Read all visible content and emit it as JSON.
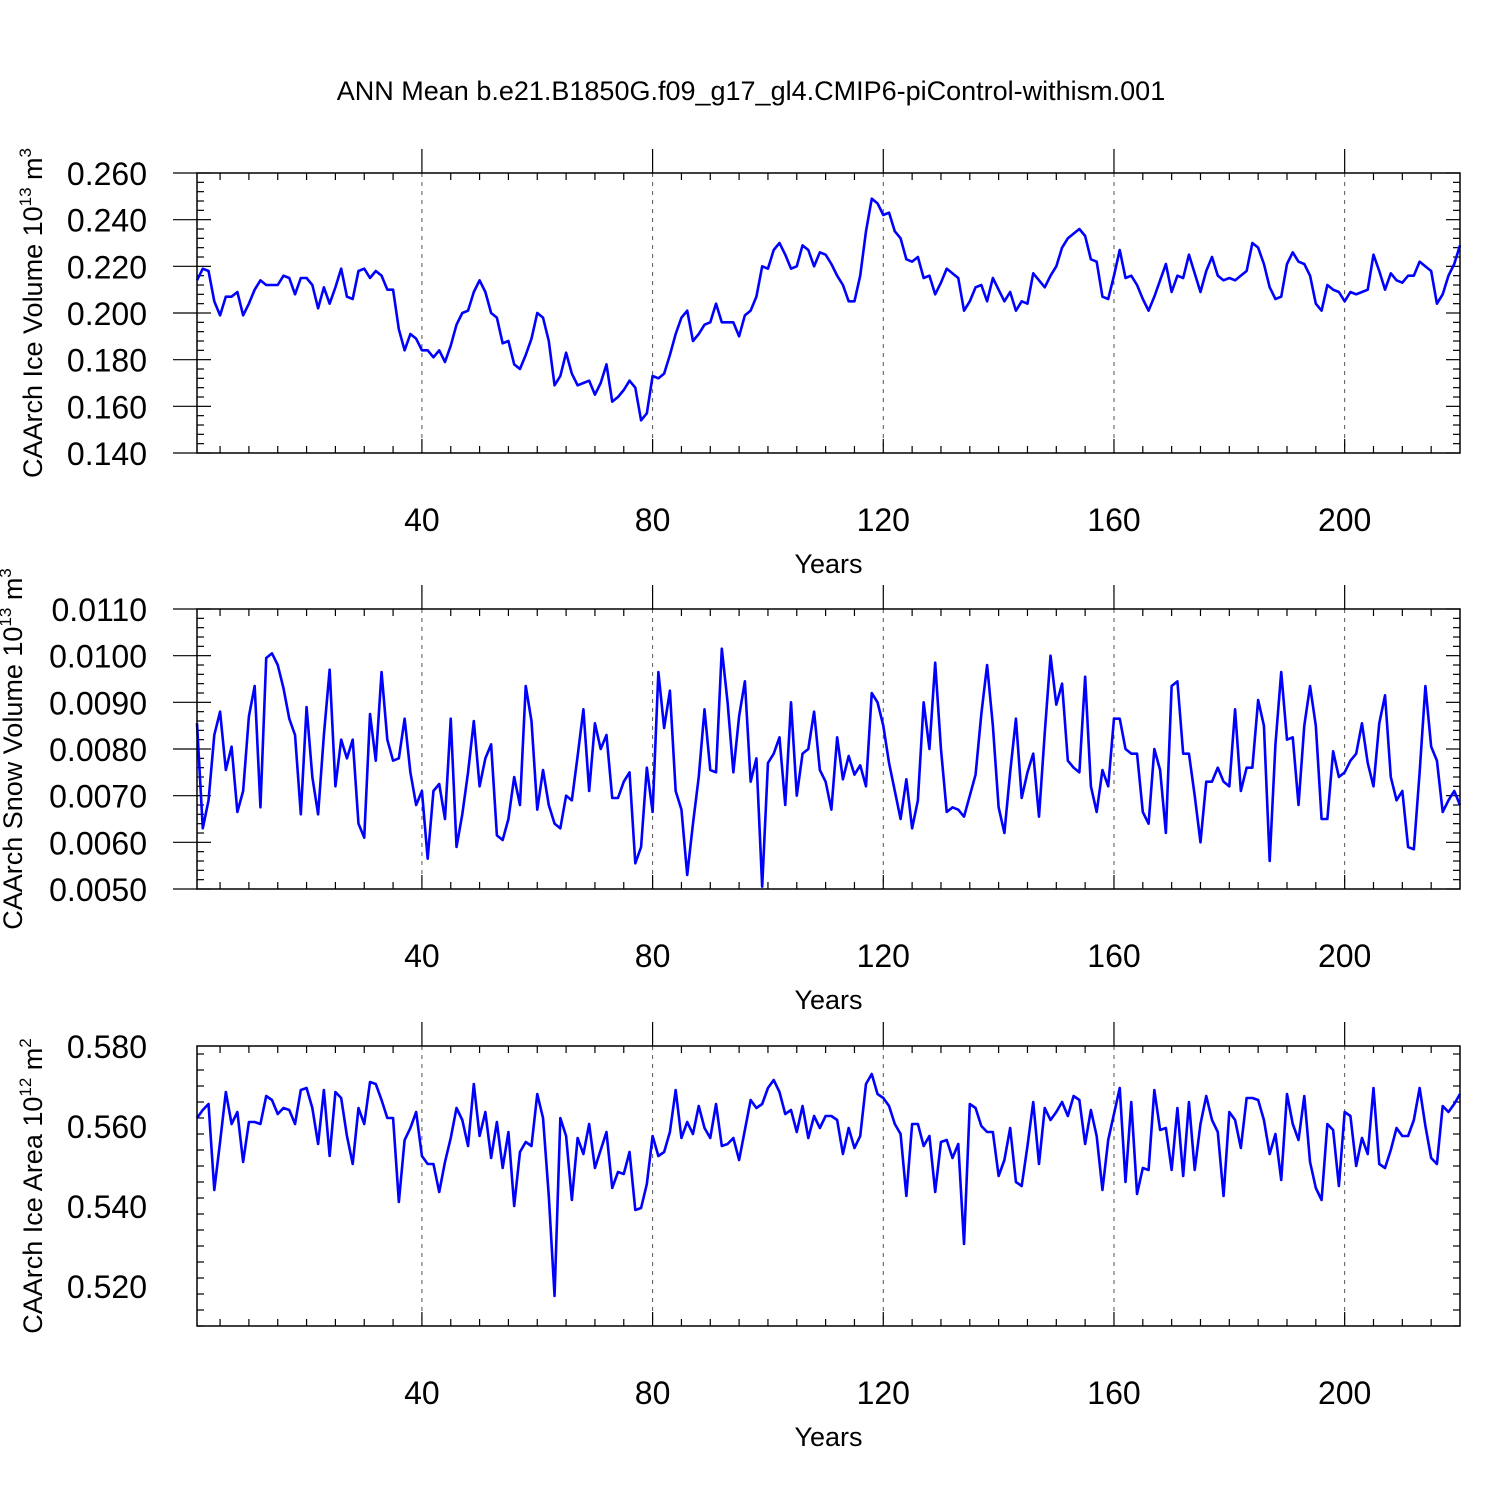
{
  "title": "ANN Mean b.e21.B1850G.f09_g17_gl4.CMIP6-piControl-withism.001",
  "colors": {
    "series": "#0000ff",
    "grid": "#555555",
    "frame": "#000000"
  },
  "chart_data": [
    {
      "type": "line",
      "ylabel": "CAArch Ice Volume 10",
      "ylabel_exp": "13",
      "ylabel_unit": " m",
      "ylabel_unit_exp": "3",
      "xlabel": "Years",
      "xlim": [
        1,
        220
      ],
      "ylim": [
        0.14,
        0.26
      ],
      "xticks": [
        40,
        80,
        120,
        160,
        200
      ],
      "xtick_labels": [
        "40",
        "80",
        "120",
        "160",
        "200"
      ],
      "yticks": [
        0.14,
        0.16,
        0.18,
        0.2,
        0.22,
        0.24,
        0.26
      ],
      "ytick_labels": [
        "0.140",
        "0.160",
        "0.180",
        "0.200",
        "0.220",
        "0.240",
        "0.260"
      ],
      "grid": "vertical dashed at major x ticks",
      "series": [
        {
          "values": [
            0.214,
            0.219,
            0.218,
            0.205,
            0.199,
            0.207,
            0.207,
            0.209,
            0.199,
            0.204,
            0.21,
            0.214,
            0.212,
            0.212,
            0.212,
            0.216,
            0.215,
            0.208,
            0.215,
            0.215,
            0.212,
            0.202,
            0.211,
            0.204,
            0.211,
            0.219,
            0.207,
            0.206,
            0.218,
            0.219,
            0.215,
            0.218,
            0.216,
            0.21,
            0.21,
            0.193,
            0.184,
            0.191,
            0.189,
            0.184,
            0.184,
            0.181,
            0.184,
            0.179,
            0.186,
            0.195,
            0.2,
            0.201,
            0.209,
            0.214,
            0.209,
            0.2,
            0.198,
            0.187,
            0.188,
            0.178,
            0.176,
            0.182,
            0.189,
            0.2,
            0.198,
            0.188,
            0.169,
            0.173,
            0.183,
            0.174,
            0.169,
            0.17,
            0.171,
            0.165,
            0.17,
            0.178,
            0.162,
            0.164,
            0.167,
            0.171,
            0.168,
            0.154,
            0.157,
            0.173,
            0.172,
            0.174,
            0.182,
            0.191,
            0.198,
            0.201,
            0.188,
            0.191,
            0.195,
            0.196,
            0.204,
            0.196,
            0.196,
            0.196,
            0.19,
            0.199,
            0.201,
            0.207,
            0.22,
            0.219,
            0.227,
            0.23,
            0.225,
            0.219,
            0.22,
            0.229,
            0.227,
            0.22,
            0.226,
            0.225,
            0.221,
            0.216,
            0.212,
            0.205,
            0.205,
            0.216,
            0.235,
            0.249,
            0.247,
            0.242,
            0.243,
            0.235,
            0.232,
            0.223,
            0.222,
            0.224,
            0.215,
            0.216,
            0.208,
            0.213,
            0.219,
            0.217,
            0.215,
            0.201,
            0.205,
            0.211,
            0.212,
            0.205,
            0.215,
            0.21,
            0.205,
            0.209,
            0.201,
            0.205,
            0.204,
            0.217,
            0.214,
            0.211,
            0.216,
            0.22,
            0.228,
            0.232,
            0.234,
            0.236,
            0.233,
            0.223,
            0.222,
            0.207,
            0.206,
            0.216,
            0.227,
            0.215,
            0.216,
            0.212,
            0.206,
            0.201,
            0.207,
            0.214,
            0.221,
            0.209,
            0.216,
            0.215,
            0.225,
            0.217,
            0.209,
            0.218,
            0.224,
            0.216,
            0.214,
            0.215,
            0.214,
            0.216,
            0.218,
            0.23,
            0.228,
            0.221,
            0.211,
            0.206,
            0.207,
            0.221,
            0.226,
            0.222,
            0.221,
            0.216,
            0.204,
            0.201,
            0.212,
            0.21,
            0.209,
            0.205,
            0.209,
            0.208,
            0.209,
            0.21,
            0.225,
            0.218,
            0.21,
            0.217,
            0.214,
            0.213,
            0.216,
            0.216,
            0.222,
            0.22,
            0.218,
            0.204,
            0.208,
            0.216,
            0.221,
            0.229
          ]
        }
      ]
    },
    {
      "type": "line",
      "ylabel": "CAArch Snow Volume 10",
      "ylabel_exp": "13",
      "ylabel_unit": " m",
      "ylabel_unit_exp": "3",
      "xlabel": "Years",
      "xlim": [
        1,
        220
      ],
      "ylim": [
        0.005,
        0.011
      ],
      "xticks": [
        40,
        80,
        120,
        160,
        200
      ],
      "xtick_labels": [
        "40",
        "80",
        "120",
        "160",
        "200"
      ],
      "yticks": [
        0.005,
        0.006,
        0.007,
        0.008,
        0.009,
        0.01,
        0.011
      ],
      "ytick_labels": [
        "0.0050",
        "0.0060",
        "0.0070",
        "0.0080",
        "0.0090",
        "0.0100",
        "0.0110"
      ],
      "grid": "vertical dashed at major x ticks",
      "series": [
        {
          "values": [
            0.00855,
            0.0063,
            0.0069,
            0.0083,
            0.0088,
            0.00755,
            0.00805,
            0.00665,
            0.0071,
            0.0087,
            0.00935,
            0.00675,
            0.00995,
            0.01005,
            0.0098,
            0.0093,
            0.00865,
            0.0083,
            0.0066,
            0.0089,
            0.0074,
            0.0066,
            0.0083,
            0.0097,
            0.0072,
            0.0082,
            0.0078,
            0.0082,
            0.0064,
            0.0061,
            0.00875,
            0.00775,
            0.00965,
            0.0082,
            0.00775,
            0.0078,
            0.00865,
            0.0075,
            0.0068,
            0.0071,
            0.00565,
            0.0071,
            0.00725,
            0.0065,
            0.00865,
            0.0059,
            0.0066,
            0.0075,
            0.0086,
            0.0072,
            0.0078,
            0.0081,
            0.00615,
            0.00605,
            0.0065,
            0.0074,
            0.0068,
            0.00935,
            0.0086,
            0.0067,
            0.00755,
            0.0068,
            0.0064,
            0.0063,
            0.007,
            0.0069,
            0.00785,
            0.00885,
            0.0071,
            0.00855,
            0.008,
            0.0083,
            0.00695,
            0.00695,
            0.0073,
            0.0075,
            0.00555,
            0.0059,
            0.0076,
            0.00665,
            0.00965,
            0.00845,
            0.00925,
            0.0071,
            0.0067,
            0.0053,
            0.0064,
            0.0074,
            0.00885,
            0.00755,
            0.0075,
            0.01015,
            0.009,
            0.0075,
            0.0087,
            0.00945,
            0.0073,
            0.0078,
            0.00505,
            0.0077,
            0.0079,
            0.00825,
            0.0068,
            0.009,
            0.007,
            0.0079,
            0.008,
            0.0088,
            0.00755,
            0.0073,
            0.0067,
            0.00825,
            0.00735,
            0.00785,
            0.00745,
            0.00765,
            0.0072,
            0.0092,
            0.009,
            0.0085,
            0.0077,
            0.0071,
            0.0065,
            0.00735,
            0.0063,
            0.0069,
            0.009,
            0.008,
            0.00985,
            0.008,
            0.00665,
            0.00675,
            0.0067,
            0.00655,
            0.007,
            0.00745,
            0.00875,
            0.0098,
            0.0085,
            0.00675,
            0.0062,
            0.0075,
            0.00865,
            0.00695,
            0.0075,
            0.0079,
            0.00655,
            0.00835,
            0.01,
            0.00895,
            0.0094,
            0.00775,
            0.0076,
            0.0075,
            0.00955,
            0.0072,
            0.00665,
            0.00755,
            0.0072,
            0.00865,
            0.00865,
            0.008,
            0.0079,
            0.0079,
            0.00665,
            0.0064,
            0.008,
            0.00755,
            0.0062,
            0.00935,
            0.00945,
            0.0079,
            0.0079,
            0.007,
            0.006,
            0.0073,
            0.0073,
            0.0076,
            0.0073,
            0.0072,
            0.00885,
            0.0071,
            0.0076,
            0.0076,
            0.00905,
            0.0085,
            0.0056,
            0.0081,
            0.00965,
            0.0082,
            0.00825,
            0.0068,
            0.0085,
            0.00935,
            0.0085,
            0.0065,
            0.0065,
            0.00795,
            0.0074,
            0.0075,
            0.00775,
            0.0079,
            0.00855,
            0.0077,
            0.0072,
            0.00855,
            0.00915,
            0.0074,
            0.0069,
            0.0071,
            0.0059,
            0.00585,
            0.0075,
            0.00935,
            0.00805,
            0.00775,
            0.00665,
            0.0069,
            0.0071,
            0.0068
          ]
        }
      ]
    },
    {
      "type": "line",
      "ylabel": "CAArch Ice Area 10",
      "ylabel_exp": "12",
      "ylabel_unit": " m",
      "ylabel_unit_exp": "2",
      "xlabel": "Years",
      "xlim": [
        1,
        220
      ],
      "ylim": [
        0.51,
        0.58
      ],
      "xticks": [
        40,
        80,
        120,
        160,
        200
      ],
      "xtick_labels": [
        "40",
        "80",
        "120",
        "160",
        "200"
      ],
      "yticks": [
        0.52,
        0.54,
        0.56,
        0.58
      ],
      "ytick_labels": [
        "0.520",
        "0.540",
        "0.560",
        "0.580"
      ],
      "grid": "vertical dashed at major x ticks",
      "series": [
        {
          "values": [
            0.562,
            0.564,
            0.5655,
            0.544,
            0.556,
            0.5685,
            0.5605,
            0.5635,
            0.551,
            0.561,
            0.561,
            0.5605,
            0.5675,
            0.5665,
            0.563,
            0.5645,
            0.564,
            0.5605,
            0.569,
            0.5695,
            0.5645,
            0.5555,
            0.569,
            0.5525,
            0.5685,
            0.567,
            0.5575,
            0.5505,
            0.5645,
            0.5605,
            0.571,
            0.5705,
            0.5665,
            0.562,
            0.562,
            0.541,
            0.5565,
            0.5595,
            0.5635,
            0.5525,
            0.5505,
            0.5505,
            0.5435,
            0.551,
            0.557,
            0.5645,
            0.5615,
            0.555,
            0.5705,
            0.5575,
            0.5635,
            0.552,
            0.561,
            0.5495,
            0.5585,
            0.54,
            0.5535,
            0.556,
            0.555,
            0.568,
            0.562,
            0.5425,
            0.5175,
            0.562,
            0.5575,
            0.5415,
            0.557,
            0.553,
            0.5605,
            0.5495,
            0.554,
            0.5585,
            0.5445,
            0.5485,
            0.548,
            0.5535,
            0.539,
            0.5395,
            0.5455,
            0.5575,
            0.5525,
            0.5535,
            0.5585,
            0.569,
            0.557,
            0.561,
            0.558,
            0.565,
            0.5595,
            0.557,
            0.5655,
            0.555,
            0.5555,
            0.557,
            0.5515,
            0.559,
            0.5665,
            0.5645,
            0.5655,
            0.5695,
            0.5715,
            0.5685,
            0.563,
            0.564,
            0.5585,
            0.565,
            0.557,
            0.5625,
            0.5595,
            0.5625,
            0.5625,
            0.5615,
            0.553,
            0.5595,
            0.5545,
            0.5575,
            0.5705,
            0.573,
            0.568,
            0.567,
            0.565,
            0.5605,
            0.558,
            0.5425,
            0.5605,
            0.5605,
            0.555,
            0.5575,
            0.5435,
            0.556,
            0.5565,
            0.552,
            0.5555,
            0.5305,
            0.5655,
            0.5645,
            0.56,
            0.5585,
            0.5585,
            0.5475,
            0.5515,
            0.5595,
            0.546,
            0.545,
            0.555,
            0.566,
            0.5505,
            0.5645,
            0.5615,
            0.5635,
            0.566,
            0.5625,
            0.5675,
            0.5665,
            0.5555,
            0.564,
            0.5575,
            0.544,
            0.5565,
            0.563,
            0.5695,
            0.546,
            0.566,
            0.543,
            0.5495,
            0.549,
            0.569,
            0.559,
            0.5595,
            0.549,
            0.5645,
            0.5475,
            0.566,
            0.549,
            0.5605,
            0.5675,
            0.5615,
            0.5585,
            0.5425,
            0.5635,
            0.5615,
            0.5545,
            0.567,
            0.567,
            0.5665,
            0.5615,
            0.553,
            0.558,
            0.5465,
            0.568,
            0.5605,
            0.5565,
            0.5675,
            0.551,
            0.5445,
            0.5415,
            0.5605,
            0.559,
            0.545,
            0.5635,
            0.5625,
            0.55,
            0.557,
            0.553,
            0.5695,
            0.5505,
            0.5495,
            0.554,
            0.5595,
            0.5575,
            0.5575,
            0.5615,
            0.5695,
            0.56,
            0.552,
            0.5505,
            0.565,
            0.5635,
            0.5655,
            0.568
          ]
        }
      ]
    }
  ]
}
